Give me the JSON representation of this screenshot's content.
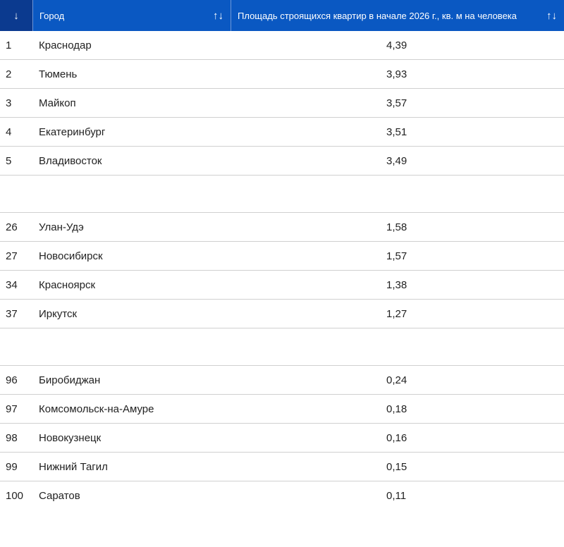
{
  "header": {
    "rank_icon": "↓",
    "city": "Город",
    "value": "Площадь строящихся квартир в начале 2026 г., кв. м на человека",
    "sort_icon": "↑↓"
  },
  "groups": [
    [
      {
        "rank": "1",
        "city": "Краснодар",
        "value": "4,39"
      },
      {
        "rank": "2",
        "city": "Тюмень",
        "value": "3,93"
      },
      {
        "rank": "3",
        "city": "Майкоп",
        "value": "3,57"
      },
      {
        "rank": "4",
        "city": "Екатеринбург",
        "value": "3,51"
      },
      {
        "rank": "5",
        "city": "Владивосток",
        "value": "3,49"
      }
    ],
    [
      {
        "rank": "26",
        "city": "Улан-Удэ",
        "value": "1,58"
      },
      {
        "rank": "27",
        "city": "Новосибирск",
        "value": "1,57"
      },
      {
        "rank": "34",
        "city": "Красноярск",
        "value": "1,38"
      },
      {
        "rank": "37",
        "city": "Иркутск",
        "value": "1,27"
      }
    ],
    [
      {
        "rank": "96",
        "city": "Биробиджан",
        "value": "0,24"
      },
      {
        "rank": "97",
        "city": "Комсомольск-на-Амуре",
        "value": "0,18"
      },
      {
        "rank": "98",
        "city": "Новокузнецк",
        "value": "0,16"
      },
      {
        "rank": "99",
        "city": "Нижний Тагил",
        "value": "0,15"
      },
      {
        "rank": "100",
        "city": "Саратов",
        "value": "0,11"
      }
    ]
  ]
}
